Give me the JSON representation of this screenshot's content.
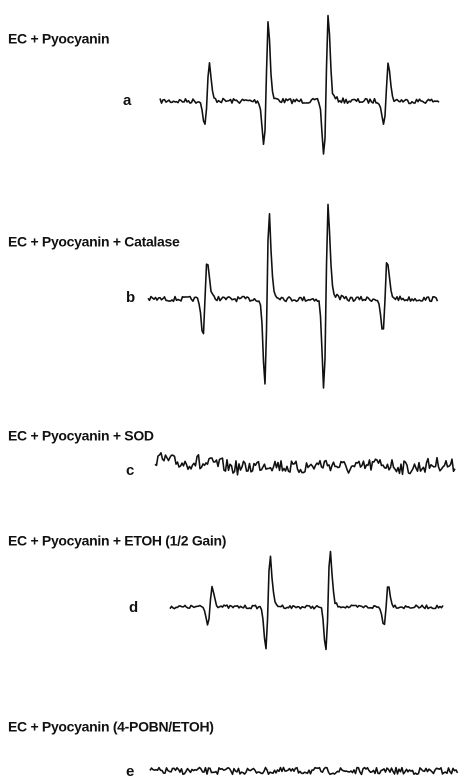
{
  "panels": [
    {
      "title": "EC + Pyocyanin",
      "label": "a"
    },
    {
      "title": "EC + Pyocyanin + Catalase",
      "label": "b"
    },
    {
      "title": "EC + Pyocyanin + SOD",
      "label": "c"
    },
    {
      "title": "EC + Pyocyanin + ETOH (1/2 Gain)",
      "label": "d"
    },
    {
      "title": "EC + Pyocyanin (4-POBN/ETOH)",
      "label": "e"
    }
  ]
}
